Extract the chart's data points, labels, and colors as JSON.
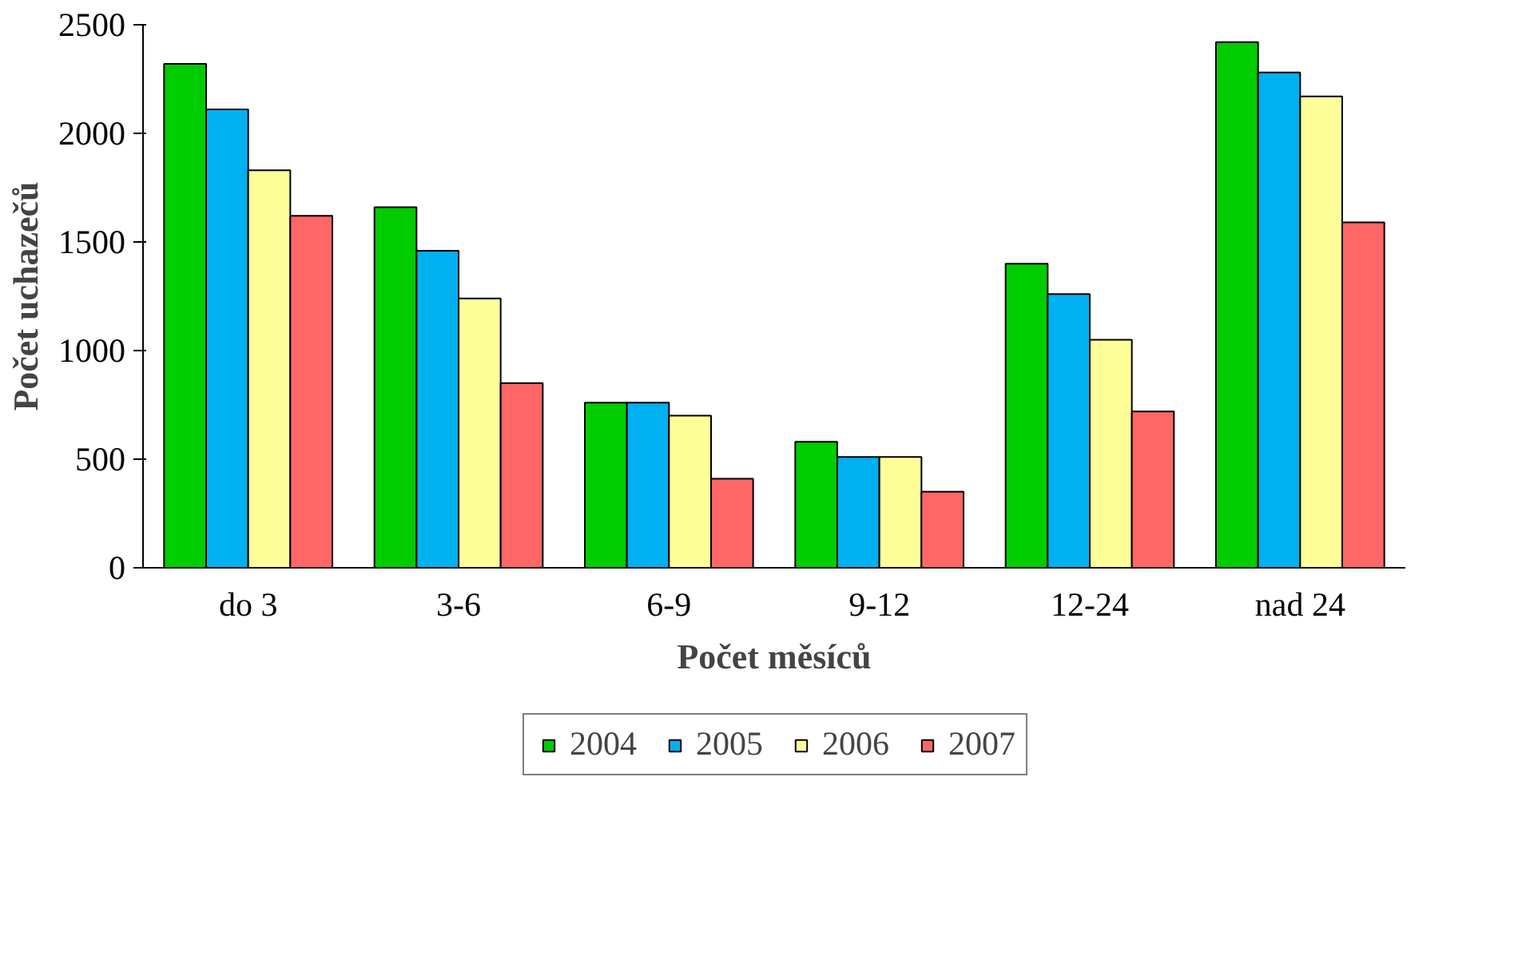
{
  "chart_data": {
    "type": "bar",
    "xlabel": "Počet měsíců",
    "ylabel": "Počet uchazečů",
    "categories": [
      "do 3",
      "3-6",
      "6-9",
      "9-12",
      "12-24",
      "nad 24"
    ],
    "series": [
      {
        "name": "2004",
        "color": "#00cc00",
        "values": [
          2320,
          1660,
          760,
          580,
          1400,
          2420
        ]
      },
      {
        "name": "2005",
        "color": "#00b0f0",
        "values": [
          2110,
          1460,
          760,
          510,
          1260,
          2280
        ]
      },
      {
        "name": "2006",
        "color": "#ffff99",
        "values": [
          1830,
          1240,
          700,
          510,
          1050,
          2170
        ]
      },
      {
        "name": "2007",
        "color": "#ff6666",
        "values": [
          1620,
          850,
          410,
          350,
          720,
          1590
        ]
      }
    ],
    "ylim": [
      0,
      2500
    ],
    "yticks": [
      0,
      500,
      1000,
      1500,
      2000,
      2500
    ],
    "grid": false,
    "legend": "bottom"
  }
}
